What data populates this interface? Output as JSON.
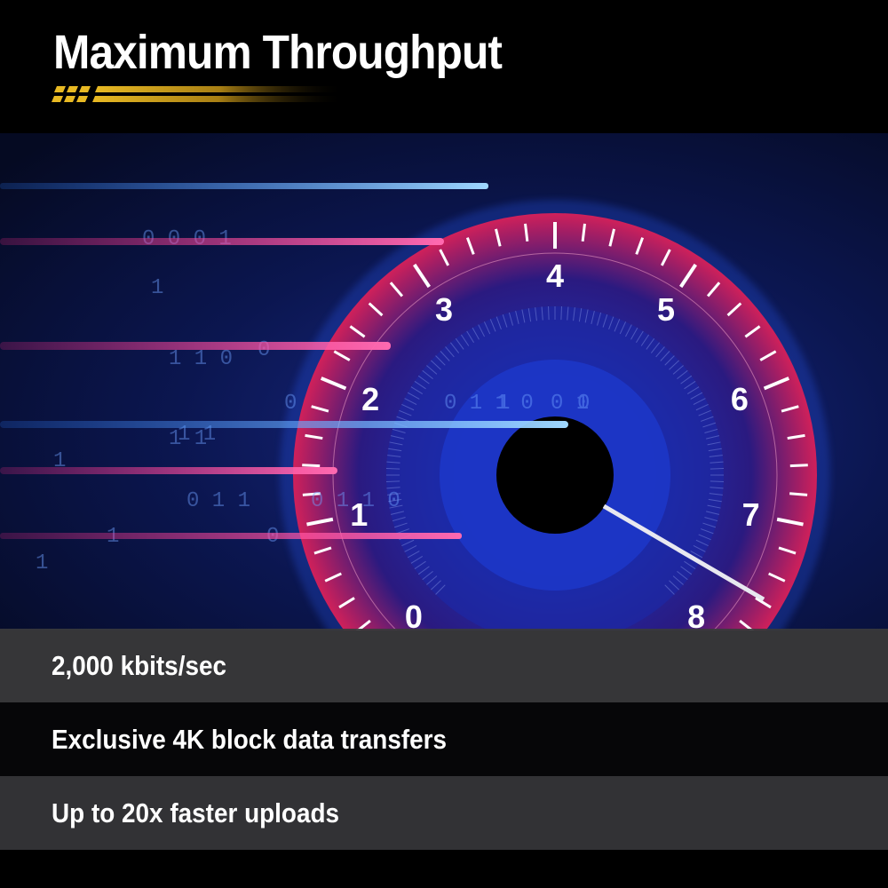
{
  "header": {
    "title": "Maximum Throughput",
    "accent_color": "#e8b923"
  },
  "hero": {
    "gauge_labels": [
      "0",
      "1",
      "2",
      "3",
      "4",
      "5",
      "6",
      "7",
      "8"
    ],
    "binary_digits": [
      "0 0 0 1",
      "1",
      "1 1 0",
      "0",
      "1 1",
      "0",
      "1 1",
      "1",
      "0 1 1",
      "0 1 1 0",
      "1",
      "0 1",
      "0",
      "1",
      "0 1 1 0",
      "0",
      "1"
    ],
    "colors": {
      "blue": "#2a7bff",
      "pink": "#ff2a8a",
      "background": "#0a1238"
    }
  },
  "features": [
    {
      "label": "2,000 kbits/sec"
    },
    {
      "label": "Exclusive 4K block data transfers"
    },
    {
      "label": "Up to 20x faster uploads"
    }
  ]
}
